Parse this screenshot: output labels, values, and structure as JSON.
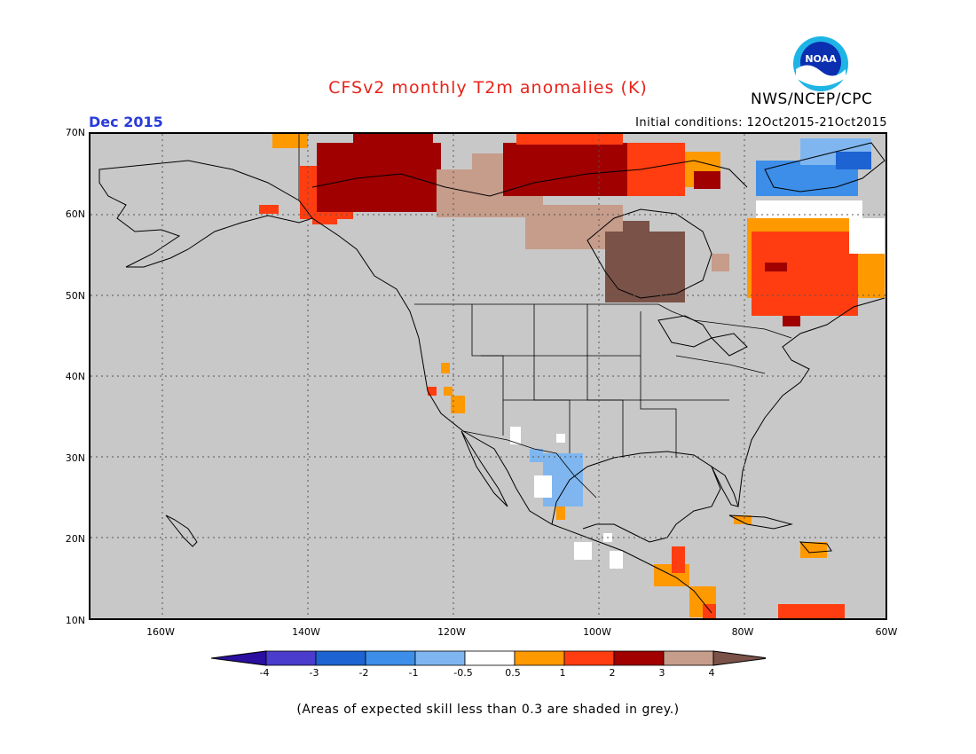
{
  "header": {
    "title": "CFSv2 monthly T2m anomalies (K)",
    "organization": "NWS/NCEP/CPC",
    "logo_text": "NOAA",
    "target_month": "Dec 2015",
    "initial_conditions": "Initial conditions: 12Oct2015-21Oct2015"
  },
  "map": {
    "projection": "lat-lon",
    "lon_range": [
      -170,
      -60
    ],
    "lat_range": [
      10,
      70
    ],
    "lat_labels": [
      "70N",
      "60N",
      "50N",
      "40N",
      "30N",
      "20N",
      "10N"
    ],
    "lon_labels": [
      "160W",
      "140W",
      "120W",
      "100W",
      "80W",
      "60W"
    ],
    "grid": "dotted",
    "background_color": "#c8c8c8",
    "anomaly_regions": [
      {
        "name": "alaska-yukon-warm",
        "category": "3",
        "lon": [
          -137,
          -122
        ],
        "lat": [
          61,
          68
        ]
      },
      {
        "name": "nwt-warm",
        "category": "3",
        "lon": [
          -113,
          -92
        ],
        "lat": [
          63,
          68
        ]
      },
      {
        "name": "nw-canada-brown",
        "category": "4",
        "lon": [
          -119,
          -100
        ],
        "lat": [
          58,
          64
        ]
      },
      {
        "name": "hudson-bay-brown",
        "category": "4+",
        "lon": [
          -98,
          -88
        ],
        "lat": [
          49,
          57
        ]
      },
      {
        "name": "labrador-quebec-warm",
        "category": "2",
        "lon": [
          -78,
          -62
        ],
        "lat": [
          49,
          57
        ]
      },
      {
        "name": "greenland-cool",
        "category": "-1",
        "lon": [
          -78,
          -62
        ],
        "lat": [
          62,
          67
        ]
      },
      {
        "name": "mexico-cool",
        "category": "-0.5",
        "lon": [
          -106,
          -103
        ],
        "lat": [
          24,
          29
        ]
      }
    ]
  },
  "colorbar": {
    "labels": [
      "-4",
      "-3",
      "-2",
      "-1",
      "-0.5",
      "0.5",
      "1",
      "2",
      "3",
      "4"
    ],
    "colors": [
      "#2a0fa0",
      "#4a3ccc",
      "#1e63d2",
      "#3c8ee8",
      "#7fb6f0",
      "#ffffff",
      "#ff9900",
      "#ff3d10",
      "#a00000",
      "#c69c8a",
      "#7a5248"
    ]
  },
  "footnote": "(Areas of expected skill less than 0.3 are shaded in grey.)"
}
